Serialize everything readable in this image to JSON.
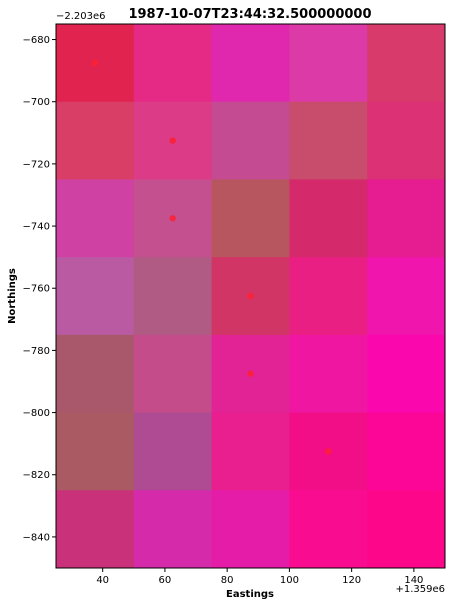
{
  "chart_data": {
    "type": "heatmap",
    "title": "1987-10-07T23:44:32.500000000",
    "xlabel": "Eastings",
    "ylabel": "Northings",
    "x_offset_label": "+1.359e6",
    "y_offset_label": "−2.203e6",
    "xlim": [
      25,
      150
    ],
    "ylim": [
      -850,
      -675
    ],
    "x_ticks": [
      40,
      60,
      80,
      100,
      120,
      140
    ],
    "y_ticks": [
      -680,
      -700,
      -720,
      -740,
      -760,
      -780,
      -800,
      -820,
      -840
    ],
    "x_tick_labels": [
      "40",
      "60",
      "80",
      "100",
      "120",
      "140"
    ],
    "y_tick_labels": [
      "−680",
      "−700",
      "−720",
      "−740",
      "−760",
      "−780",
      "−800",
      "−820",
      "−840"
    ],
    "cell_x_edges": [
      25,
      50,
      75,
      100,
      125,
      150
    ],
    "cell_y_edges": [
      -675,
      -700,
      -725,
      -750,
      -775,
      -800,
      -825,
      -850
    ],
    "cell_colors": [
      [
        "#e0234f",
        "#e52a86",
        "#df28ad",
        "#dc3aa6",
        "#d83a6c"
      ],
      [
        "#d93e67",
        "#dc3b88",
        "#c44a92",
        "#c84c6c",
        "#dc3175"
      ],
      [
        "#cf41a2",
        "#c45090",
        "#b8565f",
        "#d4296b",
        "#e51d91"
      ],
      [
        "#b95aa2",
        "#b05b83",
        "#d13566",
        "#ea1f84",
        "#f015ac"
      ],
      [
        "#a8586a",
        "#c44c8a",
        "#e22396",
        "#ef17a2",
        "#fa07ae"
      ],
      [
        "#a95a62",
        "#ae4b92",
        "#e91e8f",
        "#f20e87",
        "#fb0697"
      ],
      [
        "#c9327a",
        "#d52aaa",
        "#e51ca8",
        "#fa0c91",
        "#fd0689"
      ]
    ],
    "points": [
      {
        "x": 37.5,
        "y": -687.5
      },
      {
        "x": 62.5,
        "y": -712.5
      },
      {
        "x": 62.5,
        "y": -737.5
      },
      {
        "x": 87.5,
        "y": -762.5
      },
      {
        "x": 87.5,
        "y": -787.5
      },
      {
        "x": 112.5,
        "y": -812.5
      }
    ],
    "point_color": "#ff2030",
    "grid": false
  }
}
